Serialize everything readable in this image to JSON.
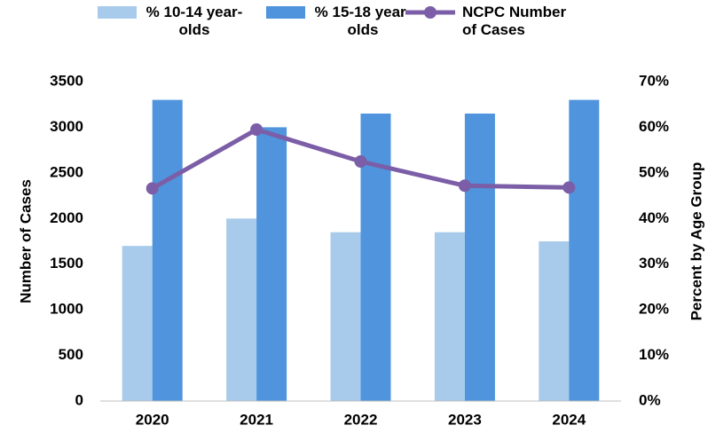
{
  "chart_data": {
    "type": "bar-line",
    "categories": [
      "2020",
      "2021",
      "2022",
      "2023",
      "2024"
    ],
    "series": [
      {
        "name": "% 10-14 year-olds",
        "color": "#a9cbeb",
        "type": "bar",
        "axis": "y2",
        "values": [
          34,
          40,
          37,
          37,
          35
        ]
      },
      {
        "name": "% 15-18 year-olds",
        "color": "#4f94dc",
        "type": "bar",
        "axis": "y2",
        "values": [
          66,
          60,
          63,
          63,
          66
        ]
      },
      {
        "name": "NCPC Number of Cases",
        "color": "#7b5ea7",
        "type": "line",
        "axis": "y",
        "values": [
          2330,
          2975,
          2625,
          2360,
          2340
        ]
      }
    ],
    "ylabel": "Number of Cases",
    "y2label": "Percent by Age Group",
    "ylim": [
      0,
      3500
    ],
    "yticks": [
      0,
      500,
      1000,
      1500,
      2000,
      2500,
      3000,
      3500
    ],
    "y2lim": [
      0,
      70
    ],
    "y2ticks": [
      {
        "value": 0,
        "label": "0%"
      },
      {
        "value": 10,
        "label": "10%"
      },
      {
        "value": 20,
        "label": "20%"
      },
      {
        "value": 30,
        "label": "30%"
      },
      {
        "value": 40,
        "label": "40%"
      },
      {
        "value": 50,
        "label": "50%"
      },
      {
        "value": 60,
        "label": "60%"
      },
      {
        "value": 70,
        "label": "70%"
      }
    ],
    "grid": false,
    "legend": "top"
  }
}
